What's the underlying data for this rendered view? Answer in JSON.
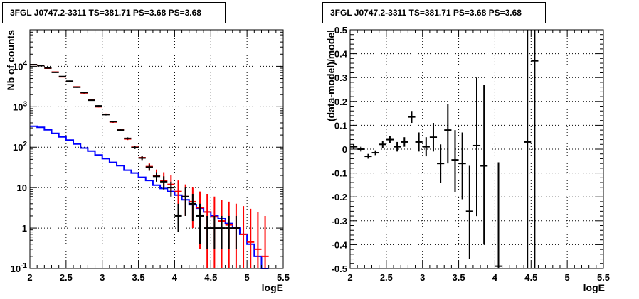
{
  "chart_data": [
    {
      "type": "line",
      "title": "3FGL J0747.2-3311 TS=381.71 PS=3.68 PS=3.68",
      "xlabel": "logE",
      "ylabel": "Nb of counts",
      "xlim": [
        2,
        5.5
      ],
      "ylim": [
        0.1,
        80000
      ],
      "yscale": "log",
      "grid": true,
      "x_ticks": [
        "2",
        "2.5",
        "3",
        "3.5",
        "4",
        "4.5",
        "5",
        "5.5"
      ],
      "y_ticks": [
        {
          "value": 0.1,
          "label": "10",
          "sup": "-1"
        },
        {
          "value": 1,
          "label": "1",
          "sup": ""
        },
        {
          "value": 10,
          "label": "10",
          "sup": ""
        },
        {
          "value": 100,
          "label": "10",
          "sup": "2"
        },
        {
          "value": 1000,
          "label": "10",
          "sup": "3"
        },
        {
          "value": 10000,
          "label": "10",
          "sup": "4"
        }
      ],
      "bin_width": 0.1,
      "series": [
        {
          "kind": "step",
          "color": "#0000ff",
          "x": [
            2.0,
            2.1,
            2.2,
            2.3,
            2.4,
            2.5,
            2.6,
            2.7,
            2.8,
            2.9,
            3.0,
            3.1,
            3.2,
            3.3,
            3.4,
            3.5,
            3.6,
            3.7,
            3.8,
            3.9,
            4.0,
            4.1,
            4.2,
            4.3,
            4.4,
            4.5,
            4.6,
            4.7,
            4.8,
            4.9,
            5.0,
            5.1,
            5.2
          ],
          "values": [
            330,
            310,
            270,
            220,
            180,
            150,
            120,
            95,
            80,
            64,
            52,
            42,
            35,
            27,
            23,
            18,
            15,
            11.5,
            9.5,
            8,
            6.5,
            5,
            3.8,
            3.1,
            2.5,
            2,
            1.7,
            1.3,
            1,
            0.7,
            0.4,
            0.2,
            0.1
          ]
        },
        {
          "kind": "points",
          "color": "#ff0000",
          "x": [
            2.05,
            2.15,
            2.25,
            2.35,
            2.45,
            2.55,
            2.65,
            2.75,
            2.85,
            2.95,
            3.05,
            3.15,
            3.25,
            3.35,
            3.45,
            3.55,
            3.65,
            3.75,
            3.85,
            3.95,
            4.05,
            4.15,
            4.25,
            4.35,
            4.45,
            4.55,
            4.65,
            4.75,
            4.85,
            4.95,
            5.05,
            5.15,
            5.25
          ],
          "values": [
            11000,
            10500,
            9000,
            7200,
            5500,
            4200,
            3100,
            2200,
            1500,
            1000,
            650,
            420,
            270,
            160,
            100,
            55,
            33,
            20,
            15,
            12,
            8,
            6,
            4.5,
            3.2,
            2.5,
            1.9,
            1.5,
            1.2,
            1,
            0.7,
            0.45,
            0.3,
            0.2
          ],
          "err_low": [
            10800,
            10300,
            8800,
            7000,
            5350,
            4050,
            3000,
            2100,
            1450,
            960,
            620,
            400,
            255,
            150,
            92,
            50,
            28,
            16,
            10,
            8,
            3,
            2,
            1,
            0.3,
            0.1,
            0.1,
            0.1,
            0.1,
            0.1,
            0.1,
            0.1,
            0.1,
            0.1
          ],
          "err_high": [
            11200,
            10700,
            9200,
            7400,
            5650,
            4350,
            3200,
            2300,
            1550,
            1040,
            680,
            440,
            285,
            170,
            108,
            60,
            40,
            28,
            24,
            20,
            15,
            12,
            10,
            8,
            7,
            6,
            5,
            4.5,
            4,
            3.5,
            3,
            2.5,
            2
          ]
        },
        {
          "kind": "points",
          "color": "#000000",
          "x": [
            2.05,
            2.15,
            2.25,
            2.35,
            2.45,
            2.55,
            2.65,
            2.75,
            2.85,
            2.95,
            3.05,
            3.15,
            3.25,
            3.35,
            3.45,
            3.55,
            3.65,
            3.75,
            3.85,
            3.95,
            4.05,
            4.15,
            4.25,
            4.35,
            4.45,
            4.55,
            4.65,
            4.75,
            4.85
          ],
          "values": [
            11000,
            10400,
            9100,
            7100,
            5600,
            4300,
            3050,
            2250,
            1450,
            1050,
            640,
            430,
            265,
            165,
            98,
            54,
            32,
            19,
            14,
            10,
            2,
            6,
            4,
            2,
            1,
            1,
            1,
            1,
            1
          ],
          "err_low": [
            10800,
            10200,
            8900,
            6900,
            5450,
            4150,
            2950,
            2150,
            1400,
            1010,
            610,
            410,
            250,
            155,
            90,
            48,
            26,
            14,
            9,
            6,
            0.8,
            2,
            1.5,
            0.4,
            0.3,
            0.3,
            0.3,
            0.3,
            0.3
          ],
          "err_high": [
            11200,
            10600,
            9300,
            7300,
            5750,
            4450,
            3150,
            2350,
            1500,
            1090,
            670,
            450,
            280,
            175,
            106,
            60,
            38,
            24,
            19,
            14,
            4,
            10,
            7,
            4,
            2,
            2,
            2,
            2,
            2
          ]
        }
      ]
    },
    {
      "type": "scatter",
      "title": "3FGL J0747.2-3311 TS=381.71 PS=3.68 PS=3.68",
      "xlabel": "logE",
      "ylabel": "(data-model)/model",
      "xlim": [
        2,
        5.5
      ],
      "ylim": [
        -0.5,
        0.5
      ],
      "grid": true,
      "x_ticks": [
        "2",
        "2.5",
        "3",
        "3.5",
        "4",
        "4.5",
        "5",
        "5.5"
      ],
      "y_ticks": [
        "-0.5",
        "-0.4",
        "-0.3",
        "-0.2",
        "-0.1",
        "0",
        "0.1",
        "0.2",
        "0.3",
        "0.4",
        "0.5"
      ],
      "bin_width": 0.1,
      "series": [
        {
          "color": "#000000",
          "x": [
            2.05,
            2.15,
            2.25,
            2.35,
            2.45,
            2.55,
            2.65,
            2.75,
            2.85,
            2.95,
            3.05,
            3.15,
            3.25,
            3.35,
            3.45,
            3.55,
            3.65,
            3.75,
            3.85,
            4.05,
            4.45,
            4.55
          ],
          "values": [
            0.01,
            0.0,
            -0.03,
            -0.015,
            0.02,
            0.04,
            0.01,
            0.03,
            0.135,
            0.03,
            0.01,
            0.05,
            -0.06,
            0.08,
            -0.045,
            -0.06,
            -0.26,
            0.015,
            -0.07,
            -0.49,
            0.03,
            0.37
          ],
          "err_low": [
            0.0,
            -0.01,
            -0.04,
            -0.025,
            0.005,
            0.025,
            -0.01,
            0.01,
            0.11,
            -0.01,
            -0.03,
            -0.01,
            -0.14,
            -0.06,
            -0.18,
            -0.21,
            -0.46,
            -0.28,
            -0.4,
            -0.5,
            -0.5,
            -0.5
          ],
          "err_high": [
            0.02,
            0.01,
            -0.02,
            -0.005,
            0.035,
            0.055,
            0.03,
            0.05,
            0.16,
            0.07,
            0.05,
            0.11,
            0.02,
            0.19,
            0.08,
            0.07,
            -0.07,
            0.3,
            0.27,
            -0.055,
            0.5,
            0.5
          ]
        }
      ]
    }
  ]
}
